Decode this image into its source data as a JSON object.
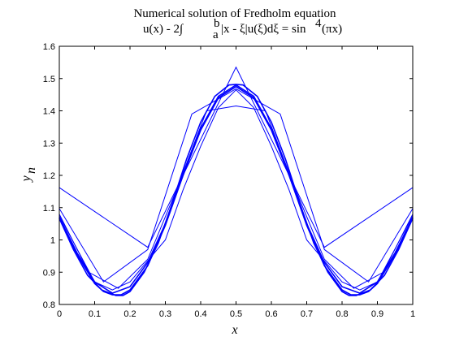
{
  "chart_data": {
    "type": "line",
    "title": "Numerical solution of Fredholm equation",
    "subtitle_parts": {
      "lhs": "u(x) - 2∫",
      "upper_limit": "b",
      "lower_limit": "a",
      "integrand": "|x - ξ|u(ξ)dξ = sin",
      "power": "4",
      "rhs": "(πx)"
    },
    "xlabel": "x",
    "ylabel": "y",
    "ylabel_subscript": "n",
    "xlim": [
      0,
      1
    ],
    "ylim": [
      0.8,
      1.6
    ],
    "xticks": [
      0,
      0.1,
      0.2,
      0.3,
      0.4,
      0.5,
      0.6,
      0.7,
      0.8,
      0.9,
      1
    ],
    "xtick_labels": [
      "0",
      "0.1",
      "0.2",
      "0.3",
      "0.4",
      "0.5",
      "0.6",
      "0.7",
      "0.8",
      "0.9",
      "1"
    ],
    "yticks": [
      0.8,
      0.9,
      1.0,
      1.1,
      1.2,
      1.3,
      1.4,
      1.5,
      1.6
    ],
    "ytick_labels": [
      "0.8",
      "0.9",
      "1",
      "1.1",
      "1.2",
      "1.3",
      "1.4",
      "1.5",
      "1.6"
    ],
    "grid": false,
    "line_color": "#0000ff",
    "series": [
      {
        "x": [
          0,
          0.25,
          0.5,
          0.75,
          1
        ],
        "values": [
          1.162,
          0.977,
          1.535,
          0.977,
          1.162
        ]
      },
      {
        "x": [
          0,
          0.125,
          0.25,
          0.375,
          0.5,
          0.625,
          0.75,
          0.875,
          1
        ],
        "values": [
          1.097,
          0.87,
          0.97,
          1.39,
          1.468,
          1.39,
          0.97,
          0.87,
          1.097
        ]
      },
      {
        "x": [
          0,
          0.0833,
          0.1667,
          0.25,
          0.3333,
          0.4167,
          0.5,
          0.5833,
          0.6667,
          0.75,
          0.8333,
          0.9167,
          1
        ],
        "values": [
          1.08,
          0.9,
          0.85,
          0.94,
          1.16,
          1.4,
          1.415,
          1.4,
          1.16,
          0.94,
          0.85,
          0.9,
          1.08
        ]
      },
      {
        "x": [
          0,
          0.1,
          0.15,
          0.2,
          0.3,
          0.35,
          0.4,
          0.45,
          0.5,
          0.55,
          0.6,
          0.65,
          0.7,
          0.8,
          0.85,
          0.9,
          1
        ],
        "values": [
          1.075,
          0.87,
          0.845,
          0.87,
          1.0,
          1.155,
          1.29,
          1.41,
          1.465,
          1.41,
          1.29,
          1.155,
          1.0,
          0.87,
          0.845,
          0.87,
          1.075
        ]
      },
      {
        "x": [
          0,
          0.05,
          0.1,
          0.15,
          0.2,
          0.25,
          0.3,
          0.35,
          0.4,
          0.45,
          0.5,
          0.55,
          0.6,
          0.65,
          0.7,
          0.75,
          0.8,
          0.85,
          0.9,
          0.95,
          1
        ],
        "values": [
          1.07,
          0.96,
          0.87,
          0.835,
          0.855,
          0.93,
          1.05,
          1.2,
          1.34,
          1.44,
          1.475,
          1.44,
          1.34,
          1.2,
          1.05,
          0.93,
          0.855,
          0.835,
          0.87,
          0.96,
          1.07
        ]
      },
      {
        "x": [
          0,
          0.05,
          0.1,
          0.125,
          0.15,
          0.175,
          0.2,
          0.25,
          0.3,
          0.35,
          0.4,
          0.45,
          0.5,
          0.55,
          0.6,
          0.65,
          0.7,
          0.75,
          0.8,
          0.825,
          0.85,
          0.875,
          0.9,
          0.95,
          1
        ],
        "values": [
          1.068,
          0.955,
          0.865,
          0.84,
          0.83,
          0.83,
          0.845,
          0.92,
          1.045,
          1.2,
          1.345,
          1.445,
          1.48,
          1.445,
          1.345,
          1.2,
          1.045,
          0.92,
          0.845,
          0.83,
          0.83,
          0.84,
          0.865,
          0.955,
          1.068
        ]
      },
      {
        "x": [
          0,
          0.04,
          0.08,
          0.12,
          0.16,
          0.18,
          0.2,
          0.24,
          0.28,
          0.32,
          0.36,
          0.4,
          0.44,
          0.48,
          0.5,
          0.52,
          0.56,
          0.6,
          0.64,
          0.68,
          0.72,
          0.76,
          0.8,
          0.82,
          0.84,
          0.88,
          0.92,
          0.96,
          1
        ],
        "values": [
          1.067,
          0.97,
          0.89,
          0.845,
          0.828,
          0.828,
          0.84,
          0.9,
          0.99,
          1.115,
          1.25,
          1.365,
          1.445,
          1.48,
          1.482,
          1.48,
          1.445,
          1.365,
          1.25,
          1.115,
          0.99,
          0.9,
          0.84,
          0.828,
          0.828,
          0.845,
          0.89,
          0.97,
          1.067
        ]
      }
    ]
  }
}
